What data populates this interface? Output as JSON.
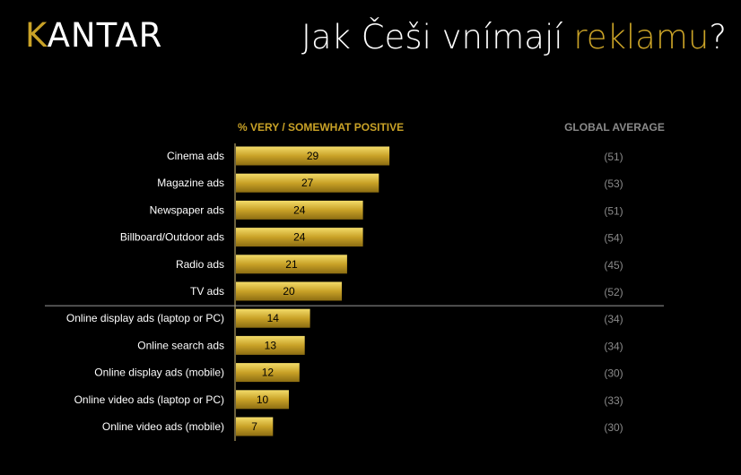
{
  "brand": {
    "name": "KANTAR",
    "first": "K",
    "rest": "ANTAR"
  },
  "headline": {
    "before": "Jak Češi vnímají ",
    "accent": "reklamu",
    "after": "?"
  },
  "colors": {
    "gold": "#c9a227",
    "bar_light": "#f3dc6a",
    "bar_dark": "#8c6d12",
    "header_gold": "#c9a227",
    "header_grey": "#8a8a8a",
    "text": "#ffffff"
  },
  "chart_data": {
    "type": "bar",
    "orientation": "horizontal",
    "title": "",
    "value_header": "% VERY / SOMEWHAT POSITIVE",
    "global_header": "GLOBAL AVERAGE",
    "categories": [
      "Cinema ads",
      "Magazine ads",
      "Newspaper ads",
      "Billboard/Outdoor ads",
      "Radio ads",
      "TV ads",
      "Online display ads (laptop or PC)",
      "Online search ads",
      "Online display ads (mobile)",
      "Online video ads (laptop or PC)",
      "Online video ads (mobile)"
    ],
    "series": [
      {
        "name": "% VERY / SOMEWHAT POSITIVE",
        "values": [
          29,
          27,
          24,
          24,
          21,
          20,
          14,
          13,
          12,
          10,
          7
        ]
      },
      {
        "name": "GLOBAL AVERAGE",
        "values": [
          51,
          53,
          51,
          54,
          45,
          52,
          34,
          34,
          30,
          33,
          30
        ]
      }
    ],
    "global_labels": [
      "(51)",
      "(53)",
      "(51)",
      "(54)",
      "(45)",
      "(52)",
      "(34)",
      "(34)",
      "(30)",
      "(33)",
      "(30)"
    ],
    "separator_after_index": 5,
    "grid": false,
    "legend": "none"
  }
}
